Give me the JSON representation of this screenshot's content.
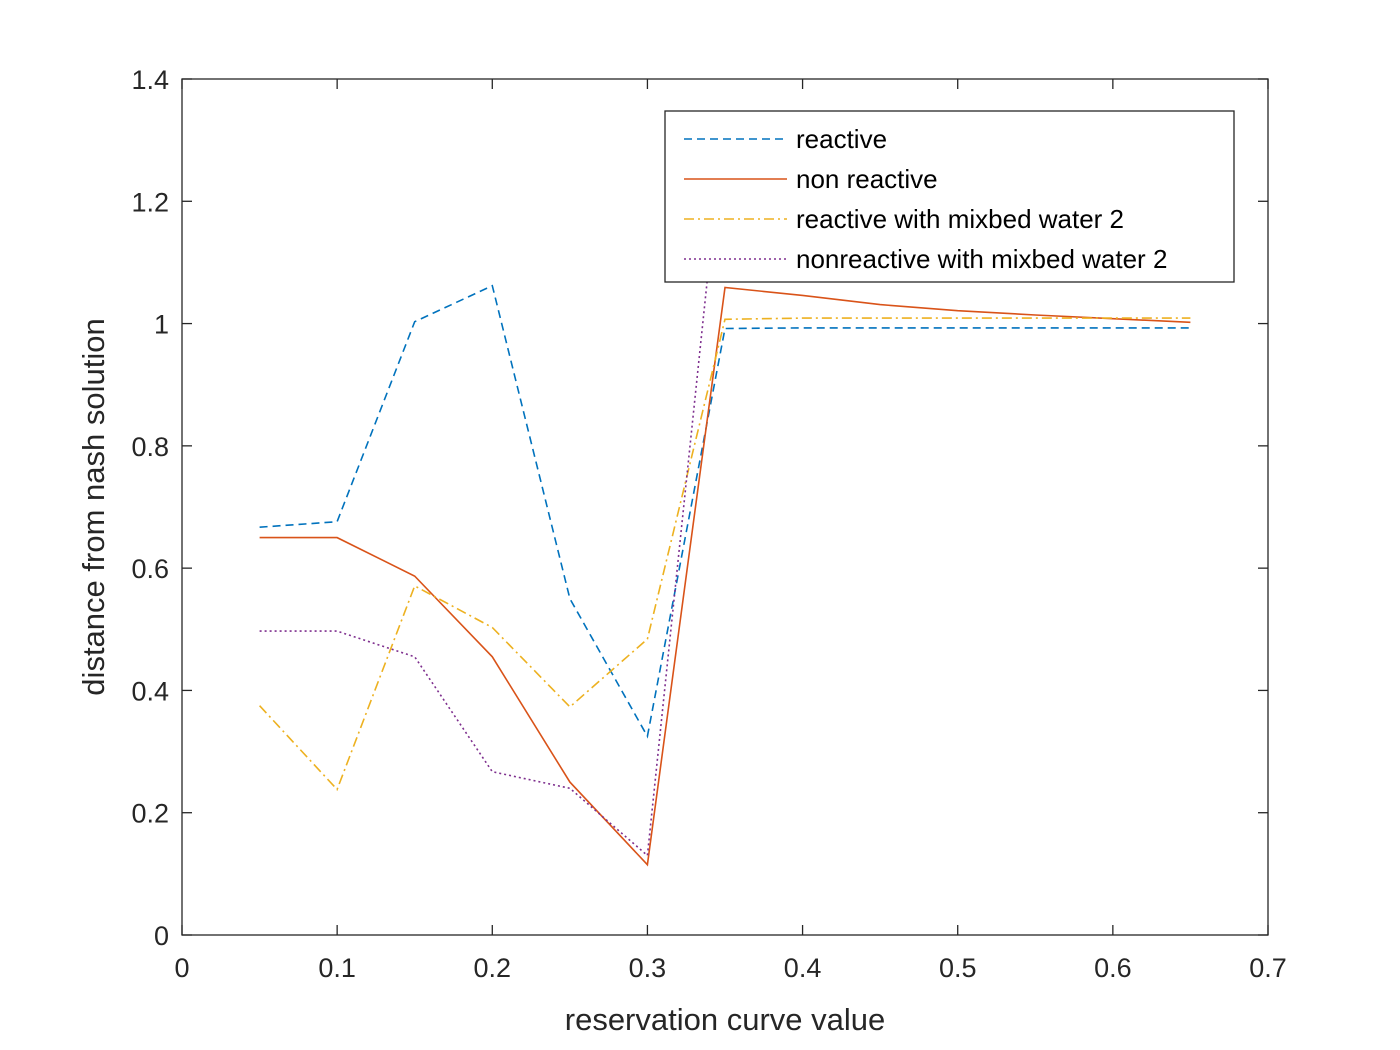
{
  "chart_data": {
    "type": "line",
    "title": "",
    "xlabel": "reservation curve value",
    "ylabel": "distance from nash solution",
    "xlim": [
      0,
      0.7
    ],
    "ylim": [
      0,
      1.4
    ],
    "xticks": [
      "0",
      "0.1",
      "0.2",
      "0.3",
      "0.4",
      "0.5",
      "0.6",
      "0.7"
    ],
    "yticks": [
      "0",
      "0.2",
      "0.4",
      "0.6",
      "0.8",
      "1",
      "1.2",
      "1.4"
    ],
    "grid": false,
    "legend_position": "top-right",
    "x": [
      0.05,
      0.1,
      0.15,
      0.2,
      0.25,
      0.3,
      0.35,
      0.4,
      0.45,
      0.5,
      0.55,
      0.6,
      0.65
    ],
    "series": [
      {
        "name": "reactive",
        "color": "#0072BD",
        "dash": "dashed",
        "values": [
          0.667,
          0.676,
          1.003,
          1.062,
          0.55,
          0.325,
          0.992,
          0.993,
          0.993,
          0.993,
          0.993,
          0.993,
          0.993
        ]
      },
      {
        "name": "non reactive",
        "color": "#D95319",
        "dash": "solid",
        "values": [
          0.65,
          0.65,
          0.587,
          0.455,
          0.25,
          0.115,
          1.059,
          1.046,
          1.031,
          1.021,
          1.014,
          1.008,
          1.002
        ]
      },
      {
        "name": "reactive with mixbed water 2",
        "color": "#EDB120",
        "dash": "dashdot",
        "values": [
          0.375,
          0.238,
          0.571,
          0.503,
          0.373,
          0.484,
          1.007,
          1.009,
          1.009,
          1.009,
          1.009,
          1.009,
          1.009
        ]
      },
      {
        "name": "nonreactive with mixbed water 2",
        "color": "#7E2F8E",
        "dash": "dotted",
        "values": [
          0.497,
          0.497,
          0.455,
          0.267,
          0.24,
          0.13,
          1.35,
          null,
          null,
          null,
          null,
          null,
          null
        ]
      }
    ]
  }
}
